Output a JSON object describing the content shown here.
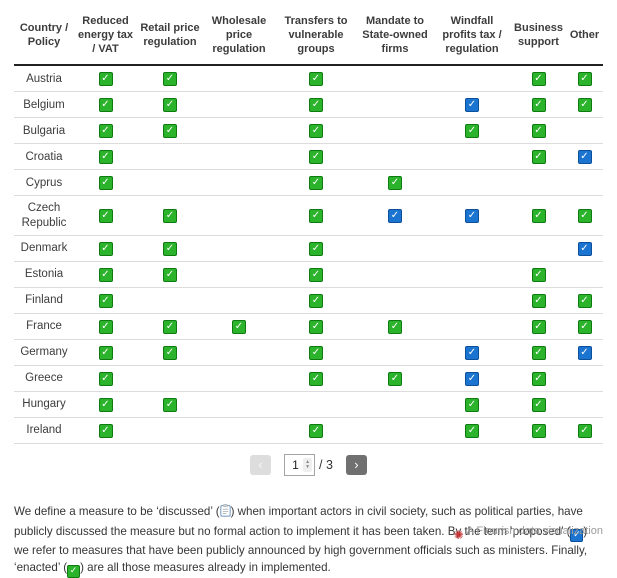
{
  "chart_data": {
    "type": "table",
    "title": "",
    "columns": [
      "Country / Policy",
      "Reduced energy tax / VAT",
      "Retail price regulation",
      "Wholesale price regulation",
      "Transfers to vulnerable groups",
      "Mandate to State-owned firms",
      "Windfall profits tax / regulation",
      "Business support",
      "Other"
    ],
    "legend": {
      "enacted": "green check",
      "proposed": "blue check",
      "discussed": "clipboard icon"
    },
    "rows": [
      {
        "country": "Austria",
        "cells": [
          "enacted",
          "enacted",
          "",
          "enacted",
          "",
          "",
          "enacted",
          "enacted"
        ]
      },
      {
        "country": "Belgium",
        "cells": [
          "enacted",
          "enacted",
          "",
          "enacted",
          "",
          "proposed",
          "enacted",
          "enacted"
        ]
      },
      {
        "country": "Bulgaria",
        "cells": [
          "enacted",
          "enacted",
          "",
          "enacted",
          "",
          "enacted",
          "enacted",
          ""
        ]
      },
      {
        "country": "Croatia",
        "cells": [
          "enacted",
          "",
          "",
          "enacted",
          "",
          "",
          "enacted",
          "proposed"
        ]
      },
      {
        "country": "Cyprus",
        "cells": [
          "enacted",
          "",
          "",
          "enacted",
          "enacted",
          "",
          "",
          ""
        ]
      },
      {
        "country": "Czech Republic",
        "cells": [
          "enacted",
          "enacted",
          "",
          "enacted",
          "proposed",
          "proposed",
          "enacted",
          "enacted"
        ]
      },
      {
        "country": "Denmark",
        "cells": [
          "enacted",
          "enacted",
          "",
          "enacted",
          "",
          "",
          "",
          "proposed"
        ]
      },
      {
        "country": "Estonia",
        "cells": [
          "enacted",
          "enacted",
          "",
          "enacted",
          "",
          "",
          "enacted",
          ""
        ]
      },
      {
        "country": "Finland",
        "cells": [
          "enacted",
          "",
          "",
          "enacted",
          "",
          "",
          "enacted",
          "enacted"
        ]
      },
      {
        "country": "France",
        "cells": [
          "enacted",
          "enacted",
          "enacted",
          "enacted",
          "enacted",
          "",
          "enacted",
          "enacted"
        ]
      },
      {
        "country": "Germany",
        "cells": [
          "enacted",
          "enacted",
          "",
          "enacted",
          "",
          "proposed",
          "enacted",
          "proposed"
        ]
      },
      {
        "country": "Greece",
        "cells": [
          "enacted",
          "",
          "",
          "enacted",
          "enacted",
          "proposed",
          "enacted",
          ""
        ]
      },
      {
        "country": "Hungary",
        "cells": [
          "enacted",
          "enacted",
          "",
          "",
          "",
          "enacted",
          "enacted",
          ""
        ]
      },
      {
        "country": "Ireland",
        "cells": [
          "enacted",
          "",
          "",
          "enacted",
          "",
          "enacted",
          "enacted",
          "enacted"
        ]
      }
    ]
  },
  "colors": {
    "enacted_fill": "#2bb32b",
    "enacted_border": "#0e7a10",
    "proposed_fill": "#1a74d0",
    "proposed_border": "#0c4f9b"
  },
  "pagination": {
    "prev_label": "‹",
    "current": "1",
    "of_label": "/ 3",
    "next_label": "›"
  },
  "footnote": {
    "part1": "We define a measure to be ‘discussed’ (",
    "part2": ") when important actors in civil society, such as political parties, have publicly discussed the measure but no formal action to implement it has been taken. By the term ‘proposed’ (",
    "part3": ") we refer to measures that have been publicly announced by high government officials such as ministers. Finally, ‘enacted’ (",
    "part4": ") are all those measures already in implemented.",
    "check_glyph": "✓"
  },
  "credit": {
    "logo_glyph": "✺",
    "text": "A Flourish data visualization"
  }
}
